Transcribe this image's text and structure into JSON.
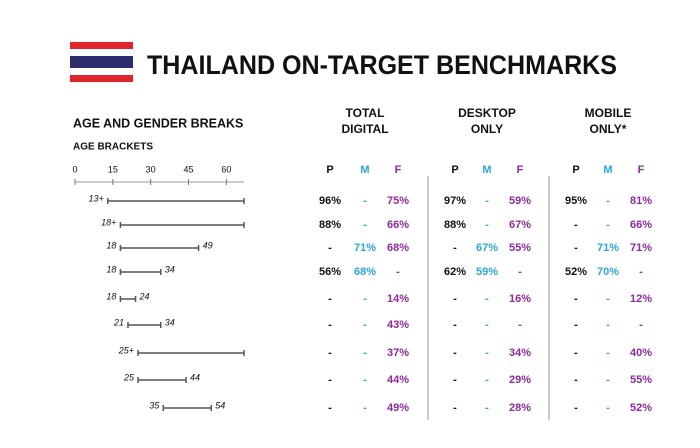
{
  "header": {
    "title": "THAILAND ON-TARGET BENCHMARKS"
  },
  "breaks": {
    "title": "AGE AND GENDER BREAKS",
    "subtitle": "AGE BRACKETS",
    "scale": {
      "lim": [
        0,
        67
      ],
      "ticks": [
        0,
        15,
        30,
        45,
        60
      ]
    },
    "brackets": [
      {
        "range": [
          13,
          null
        ],
        "label": "13+"
      },
      {
        "range": [
          18,
          null
        ],
        "label": "18+"
      },
      {
        "range": [
          18,
          49
        ]
      },
      {
        "range": [
          18,
          34
        ]
      },
      {
        "range": [
          18,
          24
        ]
      },
      {
        "range": [
          21,
          34
        ]
      },
      {
        "range": [
          25,
          null
        ],
        "label": "25+"
      },
      {
        "range": [
          25,
          44
        ]
      },
      {
        "range": [
          35,
          54
        ]
      }
    ]
  },
  "table": {
    "groups": [
      [
        "TOTAL",
        "DIGITAL"
      ],
      [
        "DESKTOP",
        "ONLY"
      ],
      [
        "MOBILE",
        "ONLY*"
      ]
    ],
    "subheaders": [
      "P",
      "M",
      "F"
    ],
    "subheader_colors": [
      "#111111",
      "#2aa7d8",
      "#8e2a9e"
    ],
    "rows": [
      [
        [
          "96%",
          "-",
          "75%"
        ],
        [
          "97%",
          "-",
          "59%"
        ],
        [
          "95%",
          "-",
          "81%"
        ]
      ],
      [
        [
          "88%",
          "-",
          "66%"
        ],
        [
          "88%",
          "-",
          "67%"
        ],
        [
          "-",
          "-",
          "66%"
        ]
      ],
      [
        [
          "-",
          "71%",
          "68%"
        ],
        [
          "-",
          "67%",
          "55%"
        ],
        [
          "-",
          "71%",
          "71%"
        ]
      ],
      [
        [
          "56%",
          "68%",
          "-"
        ],
        [
          "62%",
          "59%",
          "-"
        ],
        [
          "52%",
          "70%",
          "-"
        ]
      ],
      [
        [
          "-",
          "-",
          "14%"
        ],
        [
          "-",
          "-",
          "16%"
        ],
        [
          "-",
          "-",
          "12%"
        ]
      ],
      [
        [
          "-",
          "-",
          "43%"
        ],
        [
          "-",
          "-",
          "-"
        ],
        [
          "-",
          "-",
          "-"
        ]
      ],
      [
        [
          "-",
          "-",
          "37%"
        ],
        [
          "-",
          "-",
          "34%"
        ],
        [
          "-",
          "-",
          "40%"
        ]
      ],
      [
        [
          "-",
          "-",
          "44%"
        ],
        [
          "-",
          "-",
          "29%"
        ],
        [
          "-",
          "-",
          "55%"
        ]
      ],
      [
        [
          "-",
          "-",
          "49%"
        ],
        [
          "-",
          "-",
          "28%"
        ],
        [
          "-",
          "-",
          "52%"
        ]
      ]
    ]
  }
}
